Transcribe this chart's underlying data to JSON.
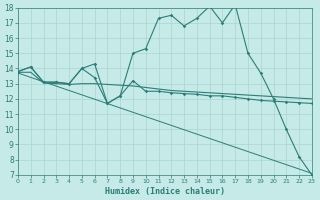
{
  "xlabel": "Humidex (Indice chaleur)",
  "bg_color": "#c5eae7",
  "grid_color": "#aad4d0",
  "line_color": "#2d7d78",
  "xlim": [
    0,
    23
  ],
  "ylim": [
    7,
    18
  ],
  "xticks": [
    0,
    1,
    2,
    3,
    4,
    5,
    6,
    7,
    8,
    9,
    10,
    11,
    12,
    13,
    14,
    15,
    16,
    17,
    18,
    19,
    20,
    21,
    22,
    23
  ],
  "yticks": [
    7,
    8,
    9,
    10,
    11,
    12,
    13,
    14,
    15,
    16,
    17,
    18
  ],
  "x": [
    0,
    1,
    2,
    3,
    4,
    5,
    6,
    7,
    8,
    9,
    10,
    11,
    12,
    13,
    14,
    15,
    16,
    17,
    18,
    19,
    20,
    21,
    22,
    23
  ],
  "curve_main": [
    13.8,
    14.1,
    13.1,
    13.1,
    13.0,
    14.0,
    14.3,
    11.7,
    12.2,
    15.0,
    15.3,
    17.3,
    17.5,
    16.8,
    17.3,
    18.1,
    17.0,
    18.2,
    15.0,
    13.7,
    12.0,
    10.0,
    8.2,
    7.0
  ],
  "curve_declining": [
    13.8,
    14.1,
    13.1,
    13.1,
    13.0,
    14.0,
    13.4,
    11.7,
    12.2,
    13.2,
    12.5,
    12.5,
    12.4,
    12.35,
    12.3,
    12.2,
    12.2,
    12.1,
    12.0,
    11.9,
    11.85,
    11.8,
    11.75,
    11.7
  ],
  "curve_flat": [
    13.75,
    13.75,
    13.05,
    13.0,
    12.95,
    13.0,
    13.0,
    12.95,
    12.9,
    12.85,
    12.75,
    12.65,
    12.55,
    12.5,
    12.45,
    12.4,
    12.35,
    12.3,
    12.25,
    12.2,
    12.15,
    12.1,
    12.05,
    12.0
  ],
  "trend_x": [
    0,
    23
  ],
  "trend_y": [
    13.7,
    7.1
  ]
}
